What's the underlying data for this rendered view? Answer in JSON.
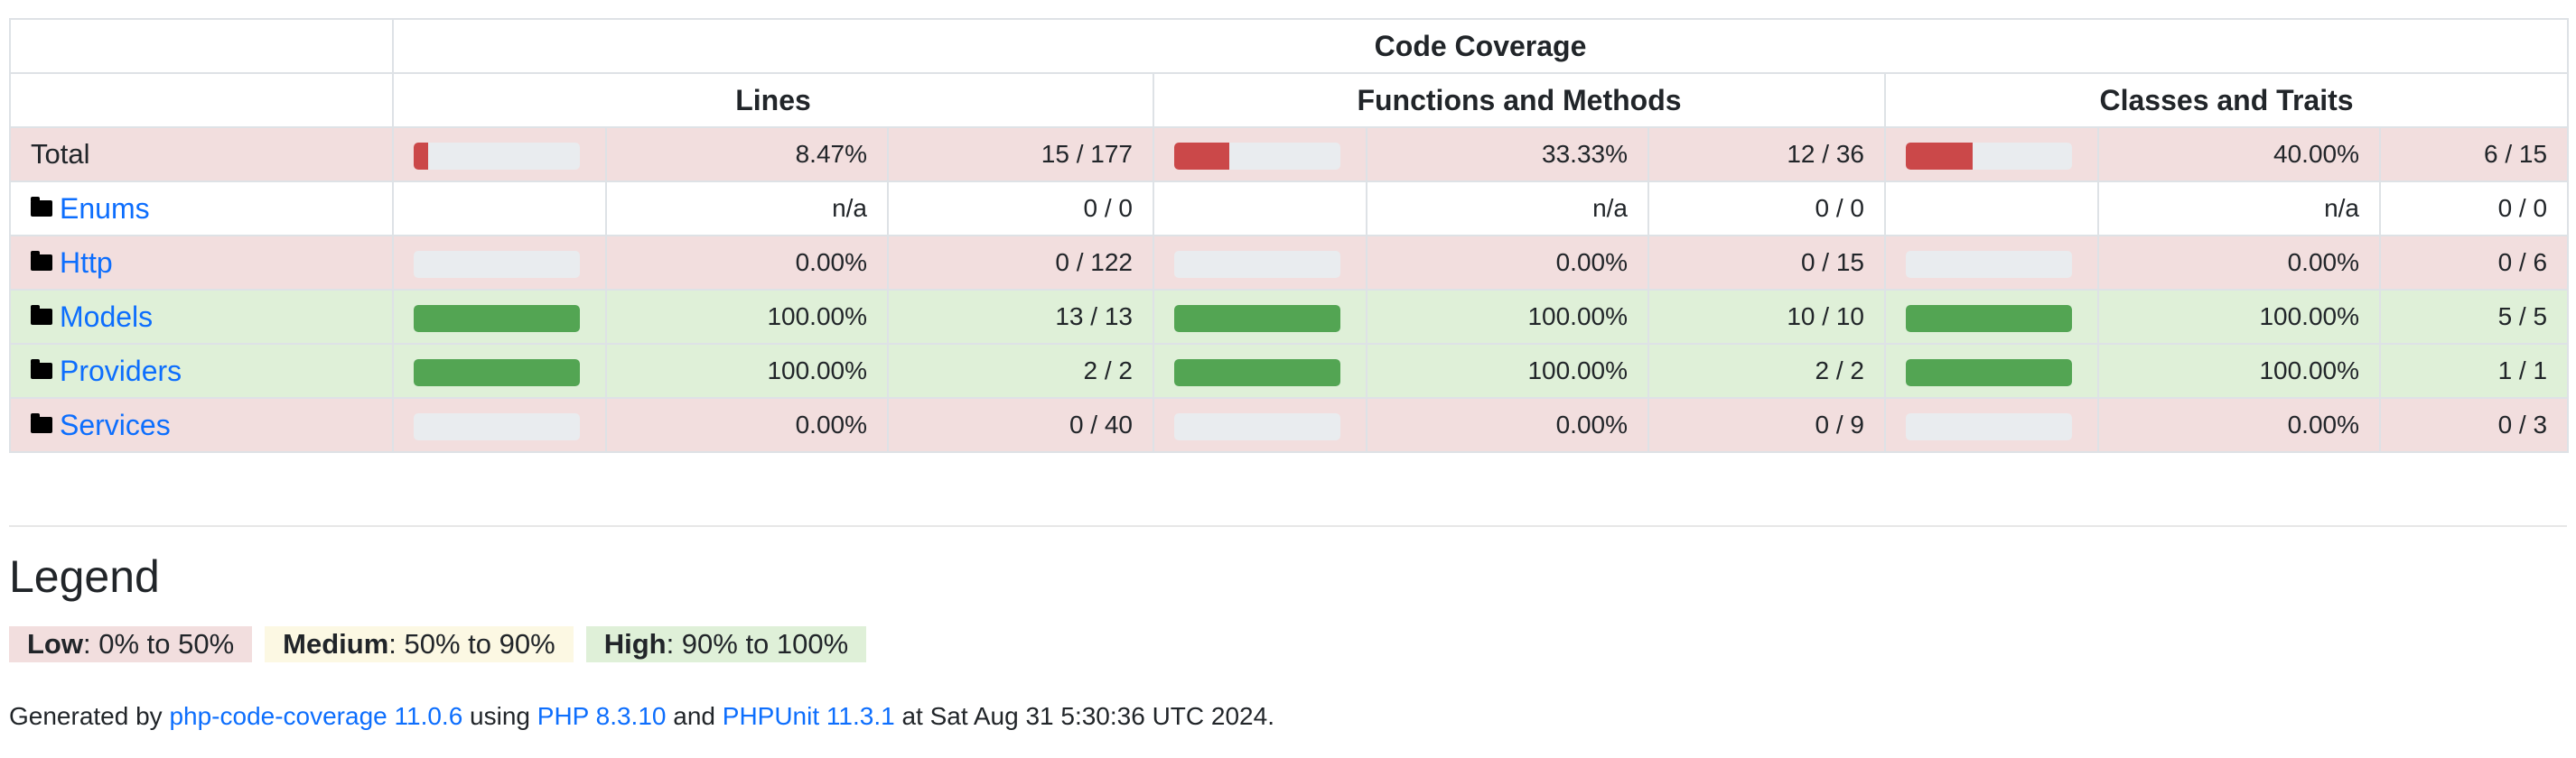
{
  "header": {
    "code_coverage": "Code Coverage",
    "lines": "Lines",
    "functions": "Functions and Methods",
    "classes": "Classes and Traits"
  },
  "rows": [
    {
      "name": "Total",
      "type": "total",
      "status": "low",
      "lines": {
        "fill": 0.0847,
        "pct": "8.47%",
        "count": "15 / 177"
      },
      "functions": {
        "fill": 0.3333,
        "pct": "33.33%",
        "count": "12 / 36"
      },
      "classes": {
        "fill": 0.4,
        "pct": "40.00%",
        "count": "6 / 15"
      }
    },
    {
      "name": "Enums",
      "type": "dir",
      "status": "none",
      "lines": {
        "fill": null,
        "pct": "n/a",
        "count": "0 / 0"
      },
      "functions": {
        "fill": null,
        "pct": "n/a",
        "count": "0 / 0"
      },
      "classes": {
        "fill": null,
        "pct": "n/a",
        "count": "0 / 0"
      }
    },
    {
      "name": "Http",
      "type": "dir",
      "status": "low",
      "lines": {
        "fill": 0,
        "pct": "0.00%",
        "count": "0 / 122"
      },
      "functions": {
        "fill": 0,
        "pct": "0.00%",
        "count": "0 / 15"
      },
      "classes": {
        "fill": 0,
        "pct": "0.00%",
        "count": "0 / 6"
      }
    },
    {
      "name": "Models",
      "type": "dir",
      "status": "high",
      "lines": {
        "fill": 1,
        "pct": "100.00%",
        "count": "13 / 13"
      },
      "functions": {
        "fill": 1,
        "pct": "100.00%",
        "count": "10 / 10"
      },
      "classes": {
        "fill": 1,
        "pct": "100.00%",
        "count": "5 / 5"
      }
    },
    {
      "name": "Providers",
      "type": "dir",
      "status": "high",
      "lines": {
        "fill": 1,
        "pct": "100.00%",
        "count": "2 / 2"
      },
      "functions": {
        "fill": 1,
        "pct": "100.00%",
        "count": "2 / 2"
      },
      "classes": {
        "fill": 1,
        "pct": "100.00%",
        "count": "1 / 1"
      }
    },
    {
      "name": "Services",
      "type": "dir",
      "status": "low",
      "lines": {
        "fill": 0,
        "pct": "0.00%",
        "count": "0 / 40"
      },
      "functions": {
        "fill": 0,
        "pct": "0.00%",
        "count": "0 / 9"
      },
      "classes": {
        "fill": 0,
        "pct": "0.00%",
        "count": "0 / 3"
      }
    }
  ],
  "legend": {
    "title": "Legend",
    "low_label": "Low",
    "low_range": ": 0% to 50%",
    "medium_label": "Medium",
    "medium_range": ": 50% to 90%",
    "high_label": "High",
    "high_range": ": 90% to 100%"
  },
  "footer": {
    "generated_by": "Generated by ",
    "tool": "php-code-coverage 11.0.6",
    "using": " using ",
    "php": "PHP 8.3.10",
    "and": " and ",
    "phpunit": "PHPUnit 11.3.1",
    "at": " at Sat Aug 31 5:30:36 UTC 2024."
  },
  "colors": {
    "low_row": "#f2dede",
    "high_row": "#dff0d8",
    "medium_row": "#fcf8e3",
    "bar_low": "#cb4849",
    "bar_high": "#53a553",
    "bar_track": "#e9ecef",
    "link": "#0d6efd"
  },
  "icons": {
    "directory": "folder-icon"
  }
}
